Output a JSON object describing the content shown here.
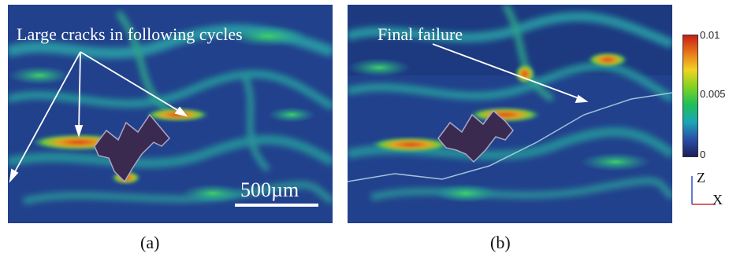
{
  "panel_a": {
    "annotation": "Large cracks in following cycles",
    "scale_label": "500µm",
    "caption": "(a)"
  },
  "panel_b": {
    "annotation": "Final failure",
    "caption": "(b)"
  },
  "colorbar": {
    "ticks": [
      "0.01",
      "0.005",
      "0"
    ],
    "colors": [
      "#c81e16",
      "#e8751a",
      "#f3d322",
      "#7ed321",
      "#1fbf5a",
      "#1aa7b5",
      "#2a4fa8",
      "#1b1f5c"
    ]
  },
  "axes": {
    "z_label": "Z",
    "x_label": "X"
  },
  "colors": {
    "background": "#1f3f88",
    "arrow": "#ffffff",
    "crack": "#3a2a50"
  }
}
